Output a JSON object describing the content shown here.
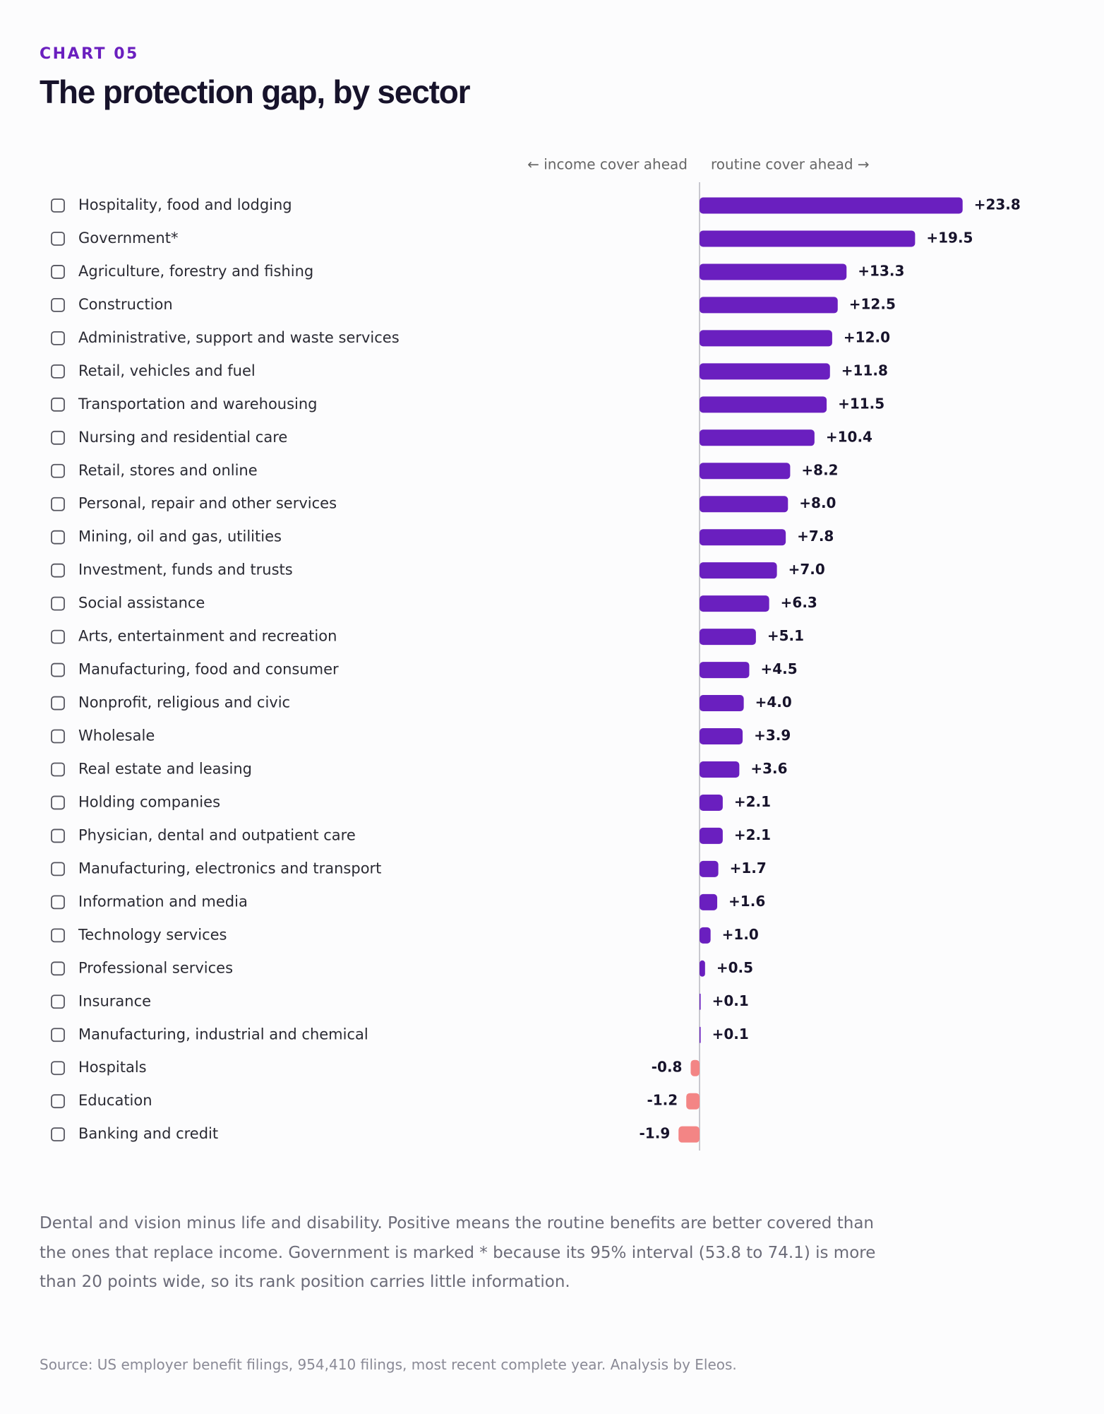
{
  "chart_data": {
    "type": "bar",
    "orientation": "horizontal",
    "eyebrow": "CHART 05",
    "title": "The protection gap, by sector",
    "left_label": "← income cover ahead",
    "right_label": "routine cover ahead →",
    "categories": [
      "Hospitality, food and lodging",
      "Government*",
      "Agriculture, forestry and fishing",
      "Construction",
      "Administrative, support and waste services",
      "Retail, vehicles and fuel",
      "Transportation and warehousing",
      "Nursing and residential care",
      "Retail, stores and online",
      "Personal, repair and other services",
      "Mining, oil and gas, utilities",
      "Investment, funds and trusts",
      "Social assistance",
      "Arts, entertainment and recreation",
      "Manufacturing, food and consumer",
      "Nonprofit, religious and civic",
      "Wholesale",
      "Real estate and leasing",
      "Holding companies",
      "Physician, dental and outpatient care",
      "Manufacturing, electronics and transport",
      "Information and media",
      "Technology services",
      "Professional services",
      "Insurance",
      "Manufacturing, industrial and chemical",
      "Hospitals",
      "Education",
      "Banking and credit"
    ],
    "values": [
      23.8,
      19.5,
      13.3,
      12.5,
      12.0,
      11.8,
      11.5,
      10.4,
      8.2,
      8.0,
      7.8,
      7.0,
      6.3,
      5.1,
      4.5,
      4.0,
      3.9,
      3.6,
      2.1,
      2.1,
      1.7,
      1.6,
      1.0,
      0.5,
      0.1,
      0.1,
      -0.8,
      -1.2,
      -1.9
    ],
    "value_labels": [
      "+23.8",
      "+19.5",
      "+13.3",
      "+12.5",
      "+12.0",
      "+11.8",
      "+11.5",
      "+10.4",
      "+8.2",
      "+8.0",
      "+7.8",
      "+7.0",
      "+6.3",
      "+5.1",
      "+4.5",
      "+4.0",
      "+3.9",
      "+3.6",
      "+2.1",
      "+2.1",
      "+1.7",
      "+1.6",
      "+1.0",
      "+0.5",
      "+0.1",
      "+0.1",
      "-0.8",
      "-1.2",
      "-1.9"
    ],
    "color_positive": "#6a1fbf",
    "color_negative": "#f38585",
    "note": "Dental and vision minus life and disability. Positive means the routine benefits are better covered than the ones that replace income. Government is marked * because its 95% interval (53.8 to 74.1) is more than 20 points wide, so its rank position carries little information.",
    "source": "Source: US employer benefit filings, 954,410 filings, most recent complete year. Analysis by Eleos."
  }
}
